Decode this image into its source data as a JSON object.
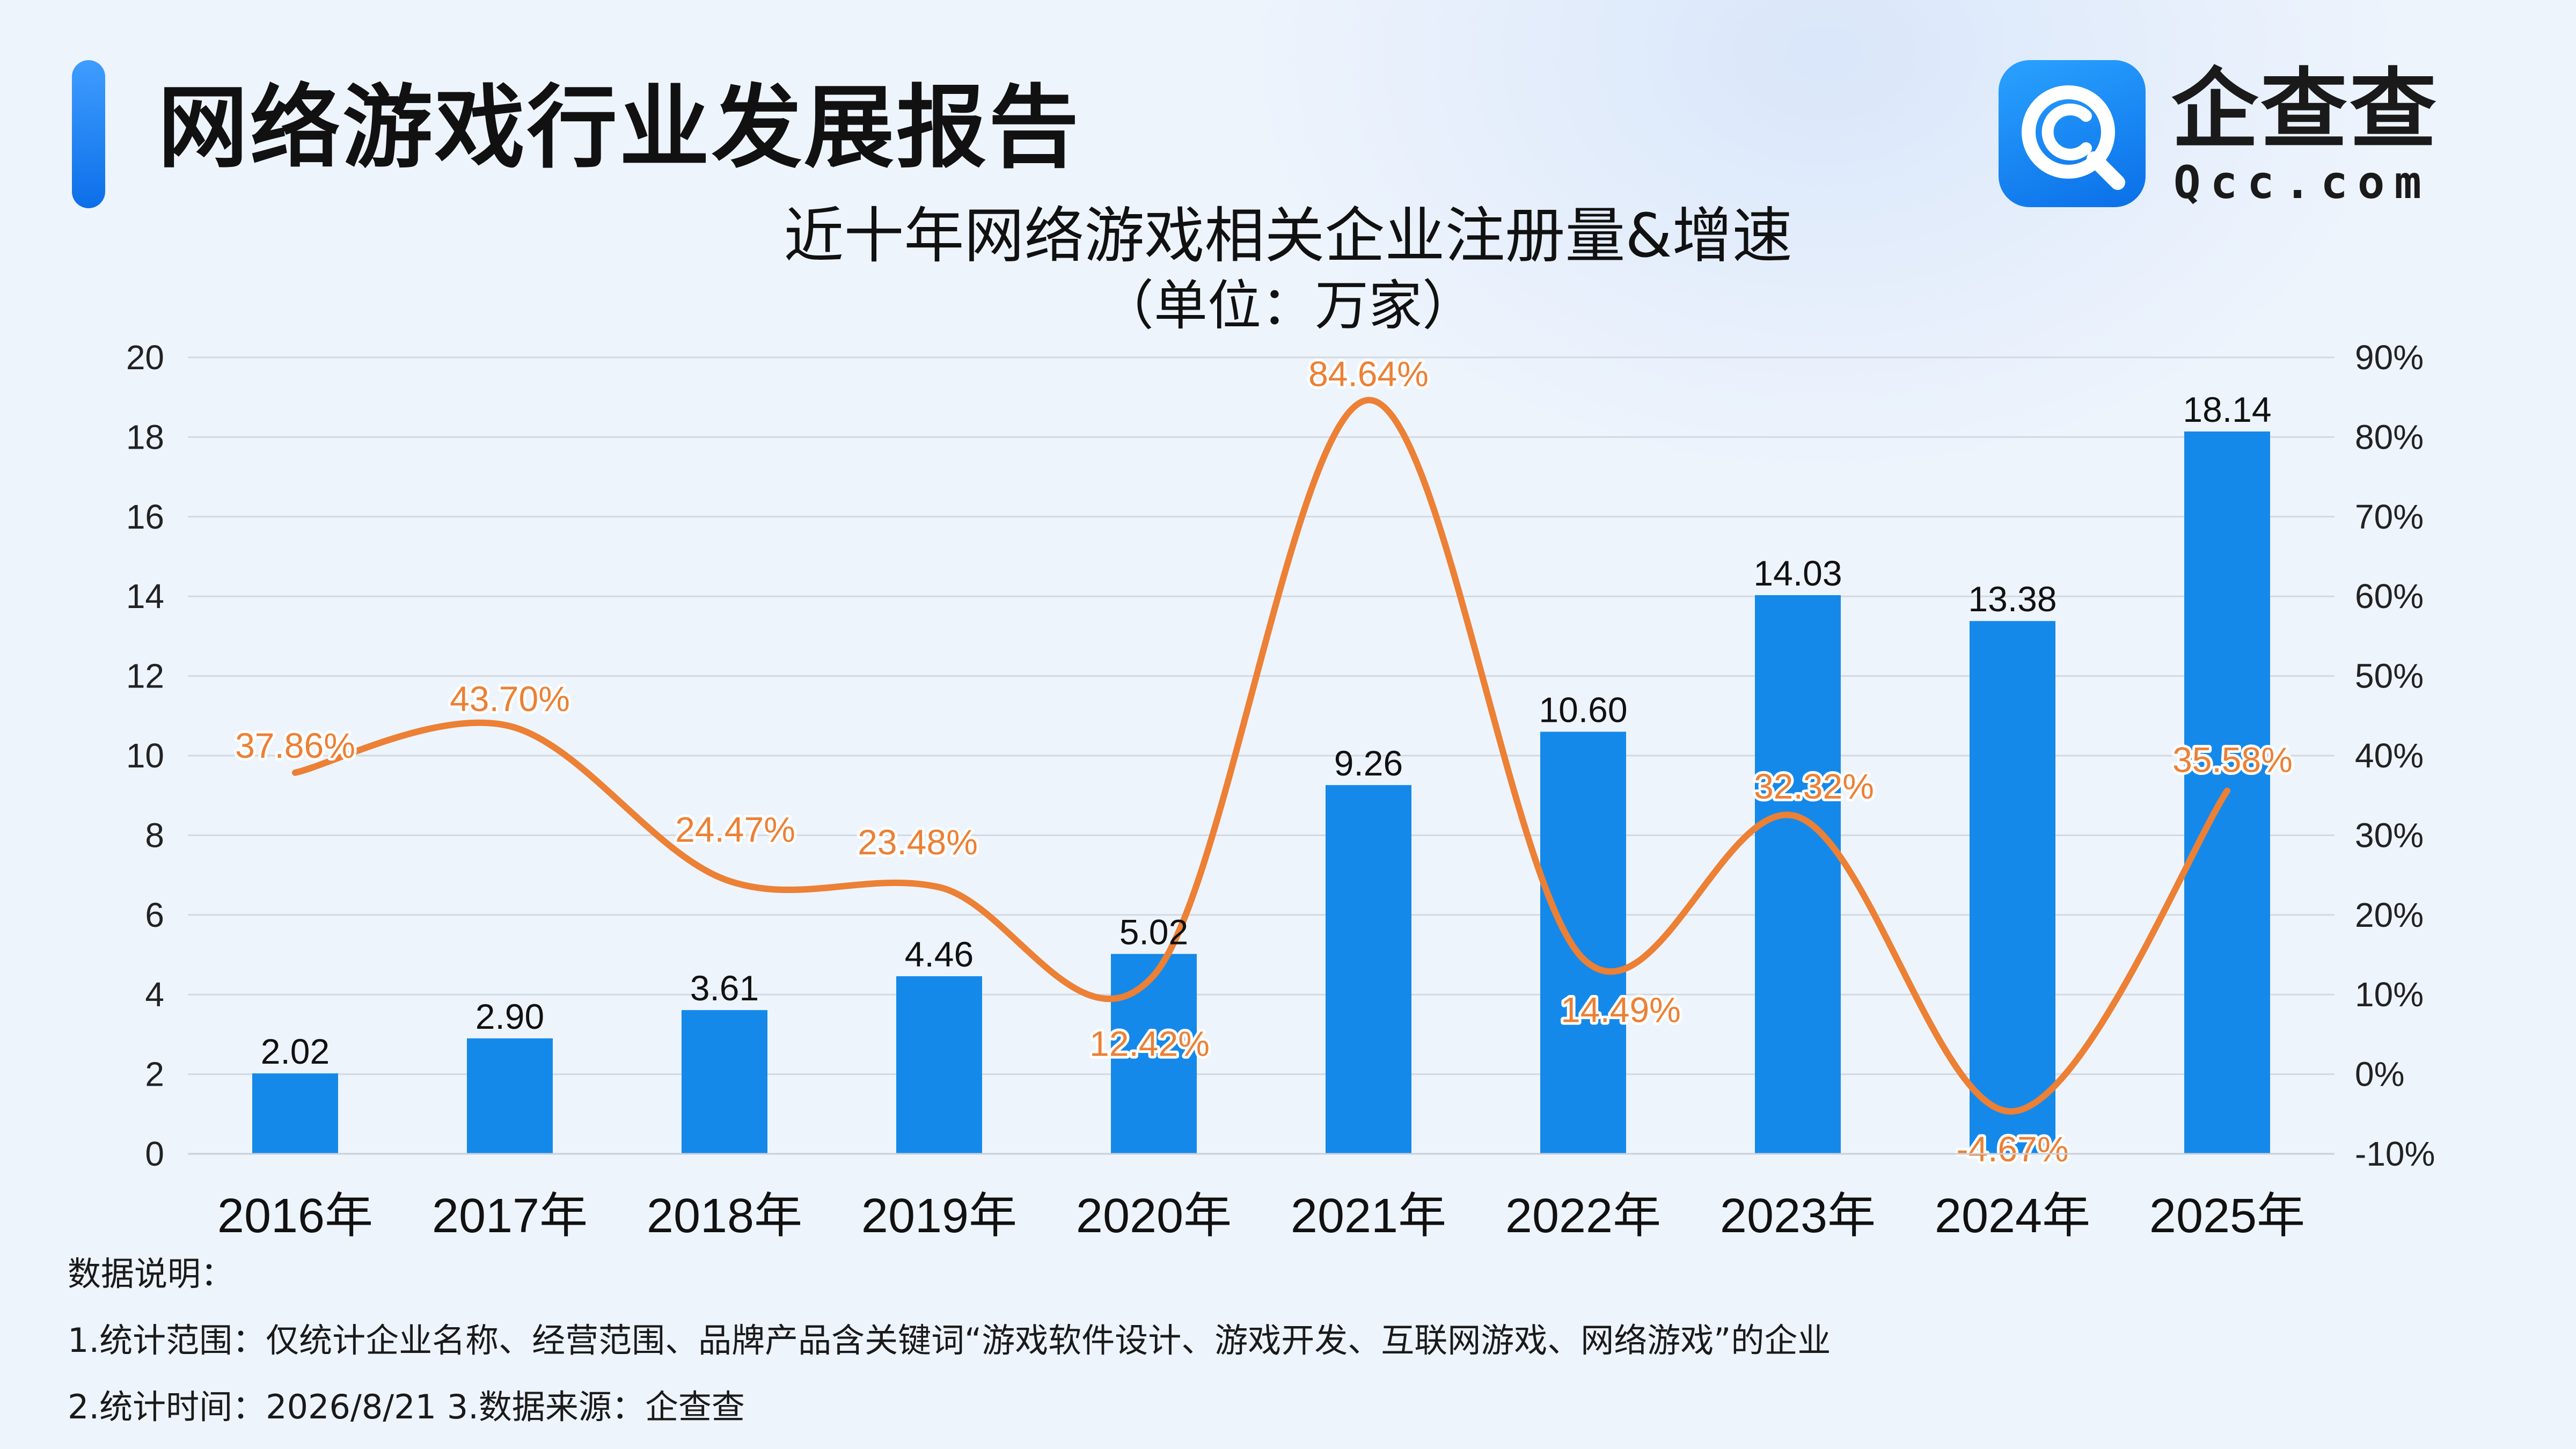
{
  "header": {
    "title": "网络游戏行业发展报告",
    "logo_name": "企查查",
    "logo_domain": "Qcc.com"
  },
  "colors": {
    "bar": "#1589ea",
    "line": "#ec8035",
    "accent": "#1478f0"
  },
  "chart_data": {
    "type": "bar",
    "title": "近十年网络游戏相关企业注册量&增速",
    "subtitle": "（单位：万家）",
    "categories": [
      "2016年",
      "2017年",
      "2018年",
      "2019年",
      "2020年",
      "2021年",
      "2022年",
      "2023年",
      "2024年",
      "2025年"
    ],
    "series": [
      {
        "type": "bar",
        "axis": "left",
        "values": [
          2.02,
          2.9,
          3.61,
          4.46,
          5.02,
          9.26,
          10.6,
          14.03,
          13.38,
          18.14
        ],
        "labels": [
          "2.02",
          "2.90",
          "3.61",
          "4.46",
          "5.02",
          "9.26",
          "10.60",
          "14.03",
          "13.38",
          "18.14"
        ]
      },
      {
        "type": "line",
        "smooth": true,
        "axis": "right",
        "values": [
          37.86,
          43.7,
          24.47,
          23.48,
          12.42,
          84.64,
          14.49,
          32.32,
          -4.67,
          35.58
        ],
        "labels": [
          "37.86%",
          "43.70%",
          "24.47%",
          "23.48%",
          "12.42%",
          "84.64%",
          "14.49%",
          "32.32%",
          "-4.67%",
          "35.58%"
        ]
      }
    ],
    "y_left": {
      "min": 0,
      "max": 20,
      "ticks": [
        "0",
        "2",
        "4",
        "6",
        "8",
        "10",
        "12",
        "14",
        "16",
        "18",
        "20"
      ]
    },
    "y_right": {
      "min": -10,
      "max": 90,
      "ticks": [
        "-10%",
        "0%",
        "10%",
        "20%",
        "30%",
        "40%",
        "50%",
        "60%",
        "70%",
        "80%",
        "90%"
      ]
    },
    "grid": true,
    "legend": "none"
  },
  "notes": {
    "heading": "数据说明：",
    "line1": "1.统计范围：仅统计企业名称、经营范围、品牌产品含关键词“游戏软件设计、游戏开发、互联网游戏、网络游戏”的企业",
    "line2": "2.统计时间：2026/8/21  3.数据来源：企查查"
  }
}
